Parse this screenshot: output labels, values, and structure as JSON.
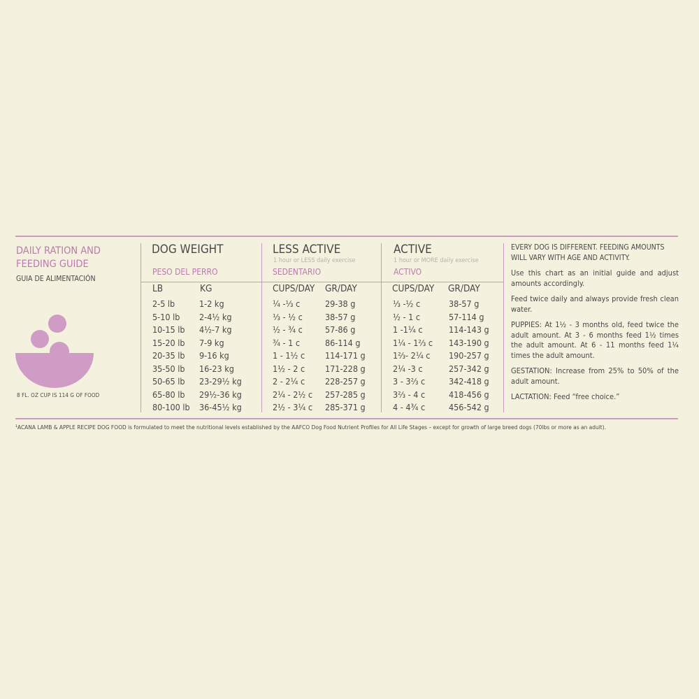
{
  "guide": {
    "title_line1": "DAILY RATION AND",
    "title_line2": "FEEDING GUIDE",
    "subtitle": "GUIA DE ALIMENTACIÓN",
    "cup_note": "8 FL. OZ CUP IS 114 G OF FOOD"
  },
  "columns": {
    "dog_weight": {
      "title": "DOG WEIGHT",
      "spanish": "PESO DEL PERRO",
      "h1": "LB",
      "h2": "KG"
    },
    "less_active": {
      "title": "LESS ACTIVE",
      "hint": "1 hour or LESS daily exercise",
      "spanish": "SEDENTARIO",
      "h1": "CUPS/DAY",
      "h2": "GR/DAY"
    },
    "active": {
      "title": "ACTIVE",
      "hint": "1 hour or MORE daily exercise",
      "spanish": "ACTIVO",
      "h1": "CUPS/DAY",
      "h2": "GR/DAY"
    }
  },
  "rows": [
    {
      "lb": "2-5 lb",
      "kg": "1-2 kg",
      "la_cups": "¼ -⅓ c",
      "la_gr": "29-38 g",
      "a_cups": "⅓ -½ c",
      "a_gr": "38-57 g"
    },
    {
      "lb": "5-10 lb",
      "kg": "2-4½ kg",
      "la_cups": "⅓ - ½ c",
      "la_gr": "38-57 g",
      "a_cups": "½ - 1 c",
      "a_gr": "57-114 g"
    },
    {
      "lb": "10-15 lb",
      "kg": "4½-7 kg",
      "la_cups": "½ - ¾ c",
      "la_gr": "57-86 g",
      "a_cups": "1 -1¼ c",
      "a_gr": "114-143 g"
    },
    {
      "lb": "15-20 lb",
      "kg": "7-9 kg",
      "la_cups": "¾ - 1 c",
      "la_gr": "86-114 g",
      "a_cups": "1¼ - 1⅔ c",
      "a_gr": "143-190 g"
    },
    {
      "lb": "20-35 lb",
      "kg": "9-16 kg",
      "la_cups": "1 - 1½ c",
      "la_gr": "114-171 g",
      "a_cups": "1⅔- 2¼ c",
      "a_gr": "190-257 g"
    },
    {
      "lb": "35-50 lb",
      "kg": "16-23 kg",
      "la_cups": "1½ - 2 c",
      "la_gr": "171-228 g",
      "a_cups": "2¼ -3 c",
      "a_gr": "257-342 g"
    },
    {
      "lb": "50-65 lb",
      "kg": "23-29½ kg",
      "la_cups": "2 - 2¼ c",
      "la_gr": "228-257 g",
      "a_cups": "3 - 3⅔ c",
      "a_gr": "342-418 g"
    },
    {
      "lb": "65-80 lb",
      "kg": "29½-36 kg",
      "la_cups": "2¼ - 2½ c",
      "la_gr": "257-285 g",
      "a_cups": "3⅔ - 4 c",
      "a_gr": "418-456 g"
    },
    {
      "lb": "80-100 lb",
      "kg": "36-45½ kg",
      "la_cups": "2½ - 3¼ c",
      "la_gr": "285-371 g",
      "a_cups": "4 - 4¾ c",
      "a_gr": "456-542 g"
    }
  ],
  "notes": {
    "intro": "EVERY DOG IS DIFFERENT. FEEDING AMOUNTS WILL VARY WITH AGE AND ACTIVITY.",
    "chart": "Use this chart as an initial guide and adjust amounts accordingly.",
    "feed": "Feed twice daily and always provide fresh clean water.",
    "puppies": "PUPPIES: At 1½ - 3 months old, feed twice the adult amount. At 3 - 6 months feed 1½ times the adult amount. At 6 - 11 months feed 1¼ times the adult amount.",
    "gestation": "GESTATION: Increase from 25% to 50% of the adult amount.",
    "lactation": "LACTATION: Feed “free choice.”"
  },
  "footnote": "¹ACANA LAMB & APPLE RECIPE DOG FOOD is formulated to meet the nutritional levels established by the AAFCO Dog Food Nutrient Profiles for All Life Stages – except for growth of large breed dogs (70lbs or more as an adult).",
  "colors": {
    "accent": "#c99bc0",
    "pink_text": "#b97aac",
    "bowl": "#cf9cc6",
    "background": "#f4f1de"
  },
  "icon": "food-bowl-icon"
}
